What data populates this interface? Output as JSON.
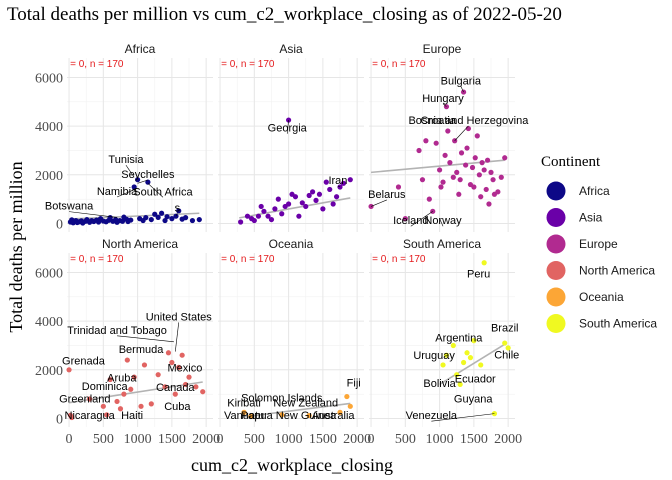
{
  "chart_data": {
    "type": "scatter",
    "title": "Total deaths per million vs cum_c2_workplace_closing as of 2022-05-20",
    "xlabel": "cum_c2_workplace_closing",
    "ylabel": "Total deaths per million",
    "xlim": [
      -30,
      2100
    ],
    "ylim": [
      -350,
      6800
    ],
    "x_ticks": [
      0,
      500,
      1000,
      1500,
      2000
    ],
    "x_tick_labels": [
      "0",
      "500",
      "1000",
      "1500",
      "2000"
    ],
    "y_ticks": [
      0,
      2000,
      4000,
      6000
    ],
    "y_tick_labels": [
      "0",
      "2000",
      "4000",
      "6000"
    ],
    "grid": true,
    "legend": {
      "title": "Continent",
      "position": "right",
      "items": [
        {
          "name": "Africa",
          "color": "#0d0887"
        },
        {
          "name": "Asia",
          "color": "#6a00a8"
        },
        {
          "name": "Europe",
          "color": "#b12a90"
        },
        {
          "name": "North America",
          "color": "#e16462"
        },
        {
          "name": "Oceania",
          "color": "#fca636"
        },
        {
          "name": "South America",
          "color": "#f0f921"
        }
      ]
    },
    "panels": [
      {
        "name": "Africa",
        "color": "#0d0887",
        "stat_text": ") = 0, n = 170",
        "trend": [
          [
            0,
            180
          ],
          [
            1900,
            420
          ]
        ],
        "points": [
          [
            20,
            60
          ],
          [
            40,
            150
          ],
          [
            60,
            30
          ],
          [
            80,
            90
          ],
          [
            100,
            120
          ],
          [
            120,
            40
          ],
          [
            150,
            70
          ],
          [
            180,
            110
          ],
          [
            200,
            20
          ],
          [
            240,
            90
          ],
          [
            260,
            160
          ],
          [
            300,
            50
          ],
          [
            330,
            120
          ],
          [
            360,
            80
          ],
          [
            400,
            140
          ],
          [
            430,
            60
          ],
          [
            460,
            200
          ],
          [
            500,
            100
          ],
          [
            540,
            70
          ],
          [
            580,
            130
          ],
          [
            600,
            240
          ],
          [
            640,
            90
          ],
          [
            680,
            160
          ],
          [
            700,
            50
          ],
          [
            740,
            120
          ],
          [
            780,
            90
          ],
          [
            800,
            260
          ],
          [
            840,
            170
          ],
          [
            860,
            80
          ],
          [
            900,
            140
          ],
          [
            950,
            1500
          ],
          [
            1000,
            1800
          ],
          [
            1030,
            200
          ],
          [
            1080,
            120
          ],
          [
            1120,
            240
          ],
          [
            1150,
            1700
          ],
          [
            1200,
            160
          ],
          [
            1250,
            380
          ],
          [
            1300,
            250
          ],
          [
            1350,
            420
          ],
          [
            1400,
            120
          ],
          [
            1430,
            280
          ],
          [
            1500,
            200
          ],
          [
            1560,
            300
          ],
          [
            1600,
            520
          ],
          [
            1650,
            180
          ],
          [
            1700,
            240
          ],
          [
            1800,
            120
          ],
          [
            1900,
            160
          ]
        ],
        "labels": [
          {
            "text": "Tunisia",
            "x": 830,
            "y": 2480,
            "px": 950,
            "py": 1900
          },
          {
            "text": "Seychelles",
            "x": 1150,
            "y": 1870,
            "px": 1000,
            "py": 1650
          },
          {
            "text": "Namibia",
            "x": 700,
            "y": 1170,
            "px": 1000,
            "py": 1450
          },
          {
            "text": "South Africa",
            "x": 1370,
            "y": 1160,
            "px": 1150,
            "py": 1650
          },
          {
            "text": "Botswana",
            "x": 0,
            "y": 570,
            "px": 700,
            "py": 250
          },
          {
            "text": "s",
            "x": 1580,
            "y": 500,
            "px": 1560,
            "py": 300
          }
        ]
      },
      {
        "name": "Asia",
        "color": "#6a00a8",
        "stat_text": ") = 0, n = 170",
        "trend": [
          [
            280,
            230
          ],
          [
            1900,
            1050
          ]
        ],
        "points": [
          [
            300,
            60
          ],
          [
            400,
            300
          ],
          [
            460,
            200
          ],
          [
            500,
            120
          ],
          [
            560,
            300
          ],
          [
            600,
            700
          ],
          [
            640,
            500
          ],
          [
            700,
            300
          ],
          [
            750,
            160
          ],
          [
            800,
            600
          ],
          [
            850,
            1000
          ],
          [
            900,
            400
          ],
          [
            950,
            700
          ],
          [
            1000,
            800
          ],
          [
            1050,
            1200
          ],
          [
            1100,
            1100
          ],
          [
            1150,
            300
          ],
          [
            1200,
            850
          ],
          [
            1250,
            700
          ],
          [
            1300,
            1150
          ],
          [
            1350,
            1300
          ],
          [
            1400,
            950
          ],
          [
            1450,
            1200
          ],
          [
            1500,
            600
          ],
          [
            1550,
            1700
          ],
          [
            1600,
            1400
          ],
          [
            1650,
            800
          ],
          [
            1700,
            1100
          ],
          [
            1750,
            1500
          ],
          [
            1800,
            1650
          ],
          [
            1900,
            1800
          ],
          [
            1000,
            4250
          ]
        ],
        "labels": [
          {
            "text": "Georgia",
            "x": 980,
            "y": 3770,
            "px": 1000,
            "py": 4250
          },
          {
            "text": "Iran",
            "x": 1720,
            "y": 1620,
            "px": 1750,
            "py": 1500
          }
        ]
      },
      {
        "name": "Europe",
        "color": "#b12a90",
        "stat_text": ") = 0, n = 170",
        "trend": [
          [
            0,
            2100
          ],
          [
            1950,
            2600
          ]
        ],
        "points": [
          [
            0,
            700
          ],
          [
            400,
            1500
          ],
          [
            500,
            200
          ],
          [
            700,
            3000
          ],
          [
            750,
            1800
          ],
          [
            800,
            3400
          ],
          [
            850,
            1000
          ],
          [
            900,
            500
          ],
          [
            950,
            3300
          ],
          [
            1000,
            2200
          ],
          [
            1020,
            1500
          ],
          [
            1050,
            1700
          ],
          [
            1080,
            2800
          ],
          [
            1100,
            4800
          ],
          [
            1120,
            3800
          ],
          [
            1150,
            2500
          ],
          [
            1200,
            1900
          ],
          [
            1220,
            3400
          ],
          [
            1250,
            2100
          ],
          [
            1280,
            1200
          ],
          [
            1300,
            1800
          ],
          [
            1320,
            2900
          ],
          [
            1350,
            5400
          ],
          [
            1380,
            2400
          ],
          [
            1400,
            3100
          ],
          [
            1420,
            3900
          ],
          [
            1450,
            1600
          ],
          [
            1480,
            2300
          ],
          [
            1500,
            1500
          ],
          [
            1520,
            2700
          ],
          [
            1550,
            3600
          ],
          [
            1580,
            2000
          ],
          [
            1600,
            1100
          ],
          [
            1620,
            2500
          ],
          [
            1650,
            2200
          ],
          [
            1680,
            1400
          ],
          [
            1700,
            2600
          ],
          [
            1720,
            800
          ],
          [
            1750,
            2100
          ],
          [
            1780,
            1800
          ],
          [
            1800,
            1200
          ],
          [
            1850,
            1300
          ],
          [
            1900,
            1900
          ],
          [
            1950,
            2700
          ]
        ],
        "labels": [
          {
            "text": "Bulgaria",
            "x": 1310,
            "y": 5720,
            "px": 1350,
            "py": 5400
          },
          {
            "text": "Hungary",
            "x": 1050,
            "y": 5000,
            "px": 1100,
            "py": 4800
          },
          {
            "text": "Croatia",
            "x": 980,
            "y": 4090
          },
          {
            "text": "Bosnia and Herzegovina",
            "x": 1420,
            "y": 4090,
            "px": 1220,
            "py": 3400
          },
          {
            "text": "Belarus",
            "x": 230,
            "y": 1050,
            "px": 0,
            "py": 700
          },
          {
            "text": "Iceland",
            "x": 580,
            "y": -30,
            "px": 900,
            "py": 500
          },
          {
            "text": "Norway",
            "x": 1050,
            "y": -30,
            "px": 1000,
            "py": 200
          }
        ]
      },
      {
        "name": "North America",
        "color": "#e16462",
        "stat_text": ") = 0, n = 170",
        "trend": [
          [
            0,
            650
          ],
          [
            1950,
            1500
          ]
        ],
        "points": [
          [
            0,
            2000
          ],
          [
            20,
            130
          ],
          [
            40,
            40
          ],
          [
            300,
            800
          ],
          [
            500,
            500
          ],
          [
            550,
            150
          ],
          [
            600,
            1600
          ],
          [
            700,
            700
          ],
          [
            750,
            400
          ],
          [
            800,
            1000
          ],
          [
            850,
            2400
          ],
          [
            900,
            1200
          ],
          [
            950,
            1700
          ],
          [
            1050,
            500
          ],
          [
            1100,
            2200
          ],
          [
            1200,
            600
          ],
          [
            1300,
            1800
          ],
          [
            1400,
            1300
          ],
          [
            1450,
            2700
          ],
          [
            1500,
            2300
          ],
          [
            1550,
            1000
          ],
          [
            1600,
            2100
          ],
          [
            1650,
            2600
          ],
          [
            1700,
            1400
          ],
          [
            1750,
            1700
          ],
          [
            1850,
            1300
          ],
          [
            1950,
            1100
          ]
        ],
        "labels": [
          {
            "text": "United States",
            "x": 1600,
            "y": 4030,
            "px": 1550,
            "py": 2750
          },
          {
            "text": "Trinidad and Tobago",
            "x": 700,
            "y": 3480,
            "px": 1530,
            "py": 3150
          },
          {
            "text": "Bermuda",
            "x": 1050,
            "y": 2690
          },
          {
            "text": "Grenada",
            "x": 210,
            "y": 2220
          },
          {
            "text": "Mexico",
            "x": 1690,
            "y": 1930
          },
          {
            "text": "Aruba",
            "x": 770,
            "y": 1520
          },
          {
            "text": "Canada",
            "x": 1550,
            "y": 1130
          },
          {
            "text": "Dominica",
            "x": 520,
            "y": 1170
          },
          {
            "text": "Greenland",
            "x": 230,
            "y": 650
          },
          {
            "text": "Cuba",
            "x": 1580,
            "y": 350
          },
          {
            "text": "Nicaragua",
            "x": 300,
            "y": -30
          },
          {
            "text": "Haiti",
            "x": 920,
            "y": -30
          }
        ]
      },
      {
        "name": "Oceania",
        "color": "#fca636",
        "stat_text": ") = 0, n = 170",
        "trend": [
          [
            300,
            50
          ],
          [
            1900,
            620
          ]
        ],
        "points": [
          [
            350,
            250
          ],
          [
            450,
            80
          ],
          [
            900,
            150
          ],
          [
            1300,
            120
          ],
          [
            1750,
            250
          ],
          [
            1850,
            900
          ],
          [
            1900,
            500
          ]
        ],
        "labels": [
          {
            "text": "Fiji",
            "x": 1950,
            "y": 1320
          },
          {
            "text": "Solomon Islands",
            "x": 900,
            "y": 700
          },
          {
            "text": "Kiribati",
            "x": 350,
            "y": 500
          },
          {
            "text": "New Zealand",
            "x": 1250,
            "y": 500
          },
          {
            "text": "Vanuatu",
            "x": 350,
            "y": -30
          },
          {
            "text": "Papua New Guinea",
            "x": 1000,
            "y": -30
          },
          {
            "text": "Australia",
            "x": 1650,
            "y": -30
          }
        ]
      },
      {
        "name": "South America",
        "color": "#f0f921",
        "stat_text": ") = 0, n = 170",
        "trend": [
          [
            1000,
            1400
          ],
          [
            1950,
            3050
          ]
        ],
        "points": [
          [
            1050,
            2200
          ],
          [
            1100,
            2600
          ],
          [
            1200,
            3000
          ],
          [
            1250,
            1800
          ],
          [
            1300,
            1400
          ],
          [
            1350,
            2300
          ],
          [
            1400,
            2700
          ],
          [
            1450,
            2500
          ],
          [
            1500,
            3200
          ],
          [
            1600,
            2200
          ],
          [
            1650,
            6400
          ],
          [
            1950,
            3100
          ],
          [
            2000,
            2900
          ],
          [
            1800,
            200
          ]
        ],
        "labels": [
          {
            "text": "Peru",
            "x": 1570,
            "y": 5800
          },
          {
            "text": "Brazil",
            "x": 1950,
            "y": 3570
          },
          {
            "text": "Argentina",
            "x": 1280,
            "y": 3170
          },
          {
            "text": "Chile",
            "x": 1980,
            "y": 2470
          },
          {
            "text": "Uruguay",
            "x": 920,
            "y": 2450
          },
          {
            "text": "Ecuador",
            "x": 1520,
            "y": 1470
          },
          {
            "text": "Bolivia",
            "x": 1000,
            "y": 1300
          },
          {
            "text": "Guyana",
            "x": 1490,
            "y": 660
          },
          {
            "text": "Venezuela",
            "x": 880,
            "y": -30,
            "px": 1800,
            "py": 200
          }
        ]
      }
    ]
  }
}
